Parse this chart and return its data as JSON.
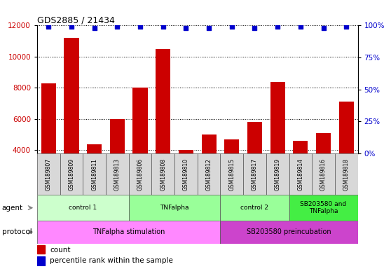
{
  "title": "GDS2885 / 21434",
  "samples": [
    "GSM189807",
    "GSM189809",
    "GSM189811",
    "GSM189813",
    "GSM189806",
    "GSM189808",
    "GSM189810",
    "GSM189812",
    "GSM189815",
    "GSM189817",
    "GSM189819",
    "GSM189814",
    "GSM189816",
    "GSM189818"
  ],
  "counts": [
    8300,
    11200,
    4400,
    6000,
    8000,
    10500,
    4000,
    5000,
    4700,
    5800,
    8400,
    4600,
    5100,
    7100
  ],
  "percentiles": [
    99,
    99,
    98,
    99,
    99,
    99,
    98,
    98,
    99,
    98,
    99,
    99,
    98,
    99
  ],
  "ylim_left": [
    3800,
    12000
  ],
  "ylim_right": [
    0,
    100
  ],
  "yticks_left": [
    4000,
    6000,
    8000,
    10000,
    12000
  ],
  "yticks_right": [
    0,
    25,
    50,
    75,
    100
  ],
  "bar_color": "#cc0000",
  "dot_color": "#0000cc",
  "agent_groups": [
    {
      "label": "control 1",
      "start": 0,
      "end": 4,
      "color": "#ccffcc"
    },
    {
      "label": "TNFalpha",
      "start": 4,
      "end": 8,
      "color": "#99ff99"
    },
    {
      "label": "control 2",
      "start": 8,
      "end": 11,
      "color": "#99ff99"
    },
    {
      "label": "SB203580 and\nTNFalpha",
      "start": 11,
      "end": 14,
      "color": "#44ee44"
    }
  ],
  "protocol_groups": [
    {
      "label": "TNFalpha stimulation",
      "start": 0,
      "end": 8,
      "color": "#ff88ff"
    },
    {
      "label": "SB203580 preincubation",
      "start": 8,
      "end": 14,
      "color": "#cc44cc"
    }
  ],
  "sample_box_color": "#d8d8d8",
  "grid_dotted_color": "#888888"
}
